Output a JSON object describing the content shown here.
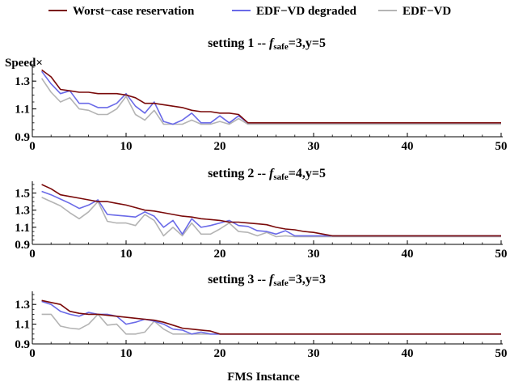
{
  "legend": {
    "items": [
      {
        "label": "Worst−case reservation",
        "color": "#7a0a0a"
      },
      {
        "label": "EDF−VD degraded",
        "color": "#6a6ae8"
      },
      {
        "label": "EDF−VD",
        "color": "#b4b4b4"
      }
    ]
  },
  "shared": {
    "xlabel": "FMS Instance",
    "ylabel": "Speed×",
    "x_ticks": [
      0,
      10,
      20,
      30,
      40,
      50
    ]
  },
  "chart_data": [
    {
      "type": "line",
      "title_prefix": "setting 1 -- ",
      "title_f": "f",
      "title_sub": "safe",
      "title_suffix": "=3,y=5",
      "xlim": [
        0,
        50
      ],
      "ylim": [
        0.9,
        1.4
      ],
      "y_ticks": [
        0.9,
        1.1,
        1.3
      ],
      "x": [
        1,
        2,
        3,
        4,
        5,
        6,
        7,
        8,
        9,
        10,
        11,
        12,
        13,
        14,
        15,
        16,
        17,
        18,
        19,
        20,
        21,
        22,
        23,
        24,
        25,
        26,
        27,
        28,
        29,
        30,
        31,
        32,
        33,
        34,
        35,
        36,
        37,
        38,
        39,
        40,
        41,
        42,
        43,
        44,
        45,
        46,
        47,
        48,
        49,
        50
      ],
      "series": [
        {
          "name": "Worst−case reservation",
          "color": "#7a0a0a",
          "values": [
            1.38,
            1.33,
            1.24,
            1.23,
            1.22,
            1.22,
            1.21,
            1.21,
            1.21,
            1.2,
            1.18,
            1.14,
            1.14,
            1.13,
            1.12,
            1.11,
            1.09,
            1.08,
            1.08,
            1.07,
            1.07,
            1.06,
            1.0,
            1.0,
            1.0,
            1.0,
            1.0,
            1.0,
            1.0,
            1.0,
            1.0,
            1.0,
            1.0,
            1.0,
            1.0,
            1.0,
            1.0,
            1.0,
            1.0,
            1.0,
            1.0,
            1.0,
            1.0,
            1.0,
            1.0,
            1.0,
            1.0,
            1.0,
            1.0,
            1.0
          ]
        },
        {
          "name": "EDF−VD degraded",
          "color": "#6a6ae8",
          "values": [
            1.37,
            1.28,
            1.21,
            1.23,
            1.14,
            1.14,
            1.11,
            1.11,
            1.14,
            1.21,
            1.12,
            1.07,
            1.15,
            1.01,
            0.99,
            1.02,
            1.07,
            1.0,
            1.0,
            1.05,
            1.0,
            1.05,
            1.0,
            1.0,
            1.0,
            1.0,
            1.0,
            1.0,
            1.0,
            1.0,
            1.0,
            1.0,
            1.0,
            1.0,
            1.0,
            1.0,
            1.0,
            1.0,
            1.0,
            1.0,
            1.0,
            1.0,
            1.0,
            1.0,
            1.0,
            1.0,
            1.0,
            1.0,
            1.0,
            1.0
          ]
        },
        {
          "name": "EDF−VD",
          "color": "#b4b4b4",
          "values": [
            1.32,
            1.22,
            1.15,
            1.18,
            1.1,
            1.09,
            1.06,
            1.06,
            1.1,
            1.19,
            1.06,
            1.02,
            1.09,
            0.99,
            0.99,
            0.99,
            1.02,
            0.99,
            0.99,
            1.01,
            0.99,
            1.03,
            0.99,
            0.99,
            0.99,
            0.99,
            0.99,
            0.99,
            0.99,
            0.99,
            0.99,
            0.99,
            0.99,
            0.99,
            0.99,
            0.99,
            0.99,
            0.99,
            0.99,
            0.99,
            0.99,
            0.99,
            0.99,
            0.99,
            0.99,
            0.99,
            0.99,
            0.99,
            0.99,
            0.99
          ]
        }
      ]
    },
    {
      "type": "line",
      "title_prefix": "setting 2 -- ",
      "title_f": "f",
      "title_sub": "safe",
      "title_suffix": "=4,y=5",
      "xlim": [
        0,
        50
      ],
      "ylim": [
        0.9,
        1.6
      ],
      "y_ticks": [
        0.9,
        1.1,
        1.3,
        1.5
      ],
      "x": [
        1,
        2,
        3,
        4,
        5,
        6,
        7,
        8,
        9,
        10,
        11,
        12,
        13,
        14,
        15,
        16,
        17,
        18,
        19,
        20,
        21,
        22,
        23,
        24,
        25,
        26,
        27,
        28,
        29,
        30,
        31,
        32,
        33,
        34,
        35,
        36,
        37,
        38,
        39,
        40,
        41,
        42,
        43,
        44,
        45,
        46,
        47,
        48,
        49,
        50
      ],
      "series": [
        {
          "name": "Worst−case reservation",
          "color": "#7a0a0a",
          "values": [
            1.6,
            1.55,
            1.48,
            1.46,
            1.44,
            1.42,
            1.4,
            1.4,
            1.38,
            1.36,
            1.33,
            1.3,
            1.29,
            1.27,
            1.25,
            1.23,
            1.22,
            1.2,
            1.19,
            1.18,
            1.16,
            1.16,
            1.15,
            1.14,
            1.13,
            1.1,
            1.08,
            1.07,
            1.05,
            1.04,
            1.02,
            1.0,
            1.0,
            1.0,
            1.0,
            1.0,
            1.0,
            1.0,
            1.0,
            1.0,
            1.0,
            1.0,
            1.0,
            1.0,
            1.0,
            1.0,
            1.0,
            1.0,
            1.0,
            1.0
          ]
        },
        {
          "name": "EDF−VD degraded",
          "color": "#6a6ae8",
          "values": [
            1.52,
            1.48,
            1.43,
            1.38,
            1.32,
            1.36,
            1.42,
            1.25,
            1.24,
            1.23,
            1.22,
            1.28,
            1.23,
            1.1,
            1.18,
            1.02,
            1.2,
            1.1,
            1.12,
            1.15,
            1.18,
            1.12,
            1.11,
            1.06,
            1.05,
            1.02,
            1.06,
            1.0,
            1.0,
            1.0,
            1.0,
            1.0,
            1.0,
            1.0,
            1.0,
            1.0,
            1.0,
            1.0,
            1.0,
            1.0,
            1.0,
            1.0,
            1.0,
            1.0,
            1.0,
            1.0,
            1.0,
            1.0,
            1.0,
            1.0
          ]
        },
        {
          "name": "EDF−VD",
          "color": "#b4b4b4",
          "values": [
            1.45,
            1.4,
            1.35,
            1.27,
            1.2,
            1.28,
            1.4,
            1.17,
            1.15,
            1.15,
            1.12,
            1.25,
            1.18,
            1.0,
            1.1,
            1.0,
            1.15,
            1.02,
            1.02,
            1.08,
            1.15,
            1.05,
            1.04,
            1.0,
            1.04,
            0.99,
            1.0,
            0.99,
            0.99,
            0.99,
            0.99,
            0.99,
            0.99,
            0.99,
            0.99,
            0.99,
            0.99,
            0.99,
            0.99,
            0.99,
            0.99,
            0.99,
            0.99,
            0.99,
            0.99,
            0.99,
            0.99,
            0.99,
            0.99,
            0.99
          ]
        }
      ]
    },
    {
      "type": "line",
      "title_prefix": "setting 3 -- ",
      "title_f": "f",
      "title_sub": "safe",
      "title_suffix": "=3,y=3",
      "xlim": [
        0,
        50
      ],
      "ylim": [
        0.9,
        1.4
      ],
      "y_ticks": [
        0.9,
        1.1,
        1.3
      ],
      "x": [
        1,
        2,
        3,
        4,
        5,
        6,
        7,
        8,
        9,
        10,
        11,
        12,
        13,
        14,
        15,
        16,
        17,
        18,
        19,
        20,
        21,
        22,
        23,
        24,
        25,
        26,
        27,
        28,
        29,
        30,
        31,
        32,
        33,
        34,
        35,
        36,
        37,
        38,
        39,
        40,
        41,
        42,
        43,
        44,
        45,
        46,
        47,
        48,
        49,
        50
      ],
      "series": [
        {
          "name": "Worst−case reservation",
          "color": "#7a0a0a",
          "values": [
            1.34,
            1.32,
            1.3,
            1.23,
            1.21,
            1.2,
            1.2,
            1.19,
            1.18,
            1.17,
            1.16,
            1.15,
            1.14,
            1.12,
            1.09,
            1.06,
            1.05,
            1.04,
            1.03,
            1.0,
            1.0,
            1.0,
            1.0,
            1.0,
            1.0,
            1.0,
            1.0,
            1.0,
            1.0,
            1.0,
            1.0,
            1.0,
            1.0,
            1.0,
            1.0,
            1.0,
            1.0,
            1.0,
            1.0,
            1.0,
            1.0,
            1.0,
            1.0,
            1.0,
            1.0,
            1.0,
            1.0,
            1.0,
            1.0,
            1.0
          ]
        },
        {
          "name": "EDF−VD degraded",
          "color": "#6a6ae8",
          "values": [
            1.33,
            1.3,
            1.23,
            1.2,
            1.18,
            1.22,
            1.2,
            1.2,
            1.18,
            1.1,
            1.12,
            1.15,
            1.13,
            1.1,
            1.05,
            1.04,
            1.0,
            1.02,
            1.0,
            1.0,
            1.0,
            1.0,
            1.0,
            1.0,
            1.0,
            1.0,
            1.0,
            1.0,
            1.0,
            1.0,
            1.0,
            1.0,
            1.0,
            1.0,
            1.0,
            1.0,
            1.0,
            1.0,
            1.0,
            1.0,
            1.0,
            1.0,
            1.0,
            1.0,
            1.0,
            1.0,
            1.0,
            1.0,
            1.0,
            1.0
          ]
        },
        {
          "name": "EDF−VD",
          "color": "#b4b4b4",
          "values": [
            1.2,
            1.2,
            1.08,
            1.06,
            1.05,
            1.1,
            1.2,
            1.09,
            1.1,
            1.0,
            1.0,
            1.02,
            1.13,
            1.05,
            1.0,
            1.0,
            1.0,
            1.0,
            1.0,
            1.0,
            1.0,
            1.0,
            1.0,
            1.0,
            1.0,
            1.0,
            1.0,
            1.0,
            1.0,
            1.0,
            1.0,
            1.0,
            1.0,
            1.0,
            1.0,
            1.0,
            1.0,
            1.0,
            1.0,
            1.0,
            1.0,
            1.0,
            1.0,
            1.0,
            1.0,
            1.0,
            1.0,
            1.0,
            1.0,
            1.0
          ]
        }
      ]
    }
  ]
}
